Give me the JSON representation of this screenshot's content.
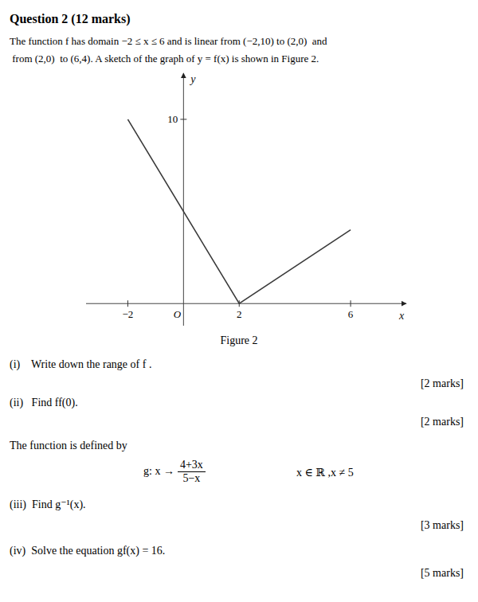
{
  "chart_data": {
    "type": "line",
    "title": "Question 2 (12 marks)",
    "subtitle": [
      "The function f has domain −2 ≤ x ≤ 6 and is linear from (−2,10) to (2,0)  and",
      " from (2,0)  to (6,4). A sketch of the graph of y = f(x) is shown in Figure 2."
    ],
    "xlabel": "x",
    "ylabel": "y",
    "x": [
      -2,
      2,
      6
    ],
    "values": [
      10,
      0,
      4
    ],
    "color": "#3a3a3a",
    "xlim": [
      -3.5,
      8.0
    ],
    "ylim": [
      -1.2,
      12.5
    ],
    "xticks": [
      {
        "value": -2,
        "label": "−2"
      },
      {
        "value": 0,
        "label": "O"
      },
      2,
      6
    ],
    "yticks": [
      10
    ],
    "grid": false,
    "annotations": [
      "Figure 2",
      "(i)    Write down the range of f .",
      "[2 marks]",
      "(ii)   Find ff(0).",
      "[2 marks]",
      "The function is defined by",
      "g: x →",
      "4+3x",
      "5−x",
      "x ∈ ℝ ,x ≠ 5",
      "(iii)  Find g⁻¹(x).",
      "[3 marks]",
      "(iv)  Solve the equation gf(x) = 16.",
      "[5 marks]"
    ]
  }
}
